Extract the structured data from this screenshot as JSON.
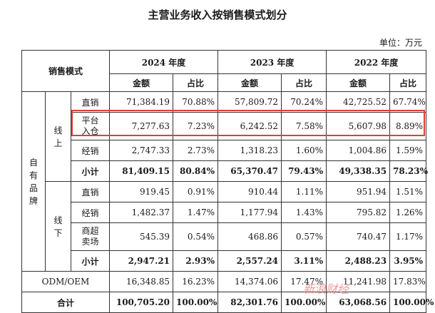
{
  "title": "主营业务收入按销售模式划分",
  "unit": "单位：万元",
  "headers": {
    "mode": "销售模式",
    "y2024": "2024 年度",
    "y2023": "2023 年度",
    "y2022": "2022 年度",
    "amount": "金额",
    "ratio": "占比"
  },
  "groups": {
    "own_brand": "自有品牌",
    "online": "线上",
    "offline": "线下"
  },
  "rows": {
    "online_direct": {
      "label": "直销",
      "v2024": "71,384.19",
      "p2024": "70.88%",
      "v2023": "57,809.72",
      "p2023": "70.24%",
      "v2022": "42,725.52",
      "p2022": "67.74%"
    },
    "online_platform": {
      "label": "平台入仓",
      "v2024": "7,277.63",
      "p2024": "7.23%",
      "v2023": "6,242.52",
      "p2023": "7.58%",
      "v2022": "5,607.98",
      "p2022": "8.89%"
    },
    "online_dealer": {
      "label": "经销",
      "v2024": "2,747.33",
      "p2024": "2.73%",
      "v2023": "1,318.23",
      "p2023": "1.60%",
      "v2022": "1,004.86",
      "p2022": "1.59%"
    },
    "online_subtotal": {
      "label": "小计",
      "v2024": "81,409.15",
      "p2024": "80.84%",
      "v2023": "65,370.47",
      "p2023": "79.43%",
      "v2022": "49,338.35",
      "p2022": "78.23%"
    },
    "offline_direct": {
      "label": "直销",
      "v2024": "919.45",
      "p2024": "0.91%",
      "v2023": "910.44",
      "p2023": "1.11%",
      "v2022": "951.94",
      "p2022": "1.51%"
    },
    "offline_dealer": {
      "label": "经销",
      "v2024": "1,482.37",
      "p2024": "1.47%",
      "v2023": "1,177.94",
      "p2023": "1.43%",
      "v2022": "795.82",
      "p2022": "1.26%"
    },
    "offline_market": {
      "label": "商超卖场",
      "v2024": "545.39",
      "p2024": "0.54%",
      "v2023": "468.86",
      "p2023": "0.57%",
      "v2022": "740.47",
      "p2022": "1.17%"
    },
    "offline_subtotal": {
      "label": "小计",
      "v2024": "2,947.21",
      "p2024": "2.93%",
      "v2023": "2,557.24",
      "p2023": "3.11%",
      "v2022": "2,488.23",
      "p2022": "3.95%"
    },
    "odm": {
      "label": "ODM/OEM",
      "v2024": "16,348.85",
      "p2024": "16.23%",
      "v2023": "14,374.06",
      "p2023": "17.47%",
      "v2022": "11,241.98",
      "p2022": "17.83%"
    },
    "total": {
      "label": "合计",
      "v2024": "100,705.20",
      "p2024": "100.00%",
      "v2023": "82,301.76",
      "p2023": "100.00%",
      "v2022": "63,068.56",
      "p2022": "100.00%"
    }
  },
  "watermark": "新浪财经"
}
